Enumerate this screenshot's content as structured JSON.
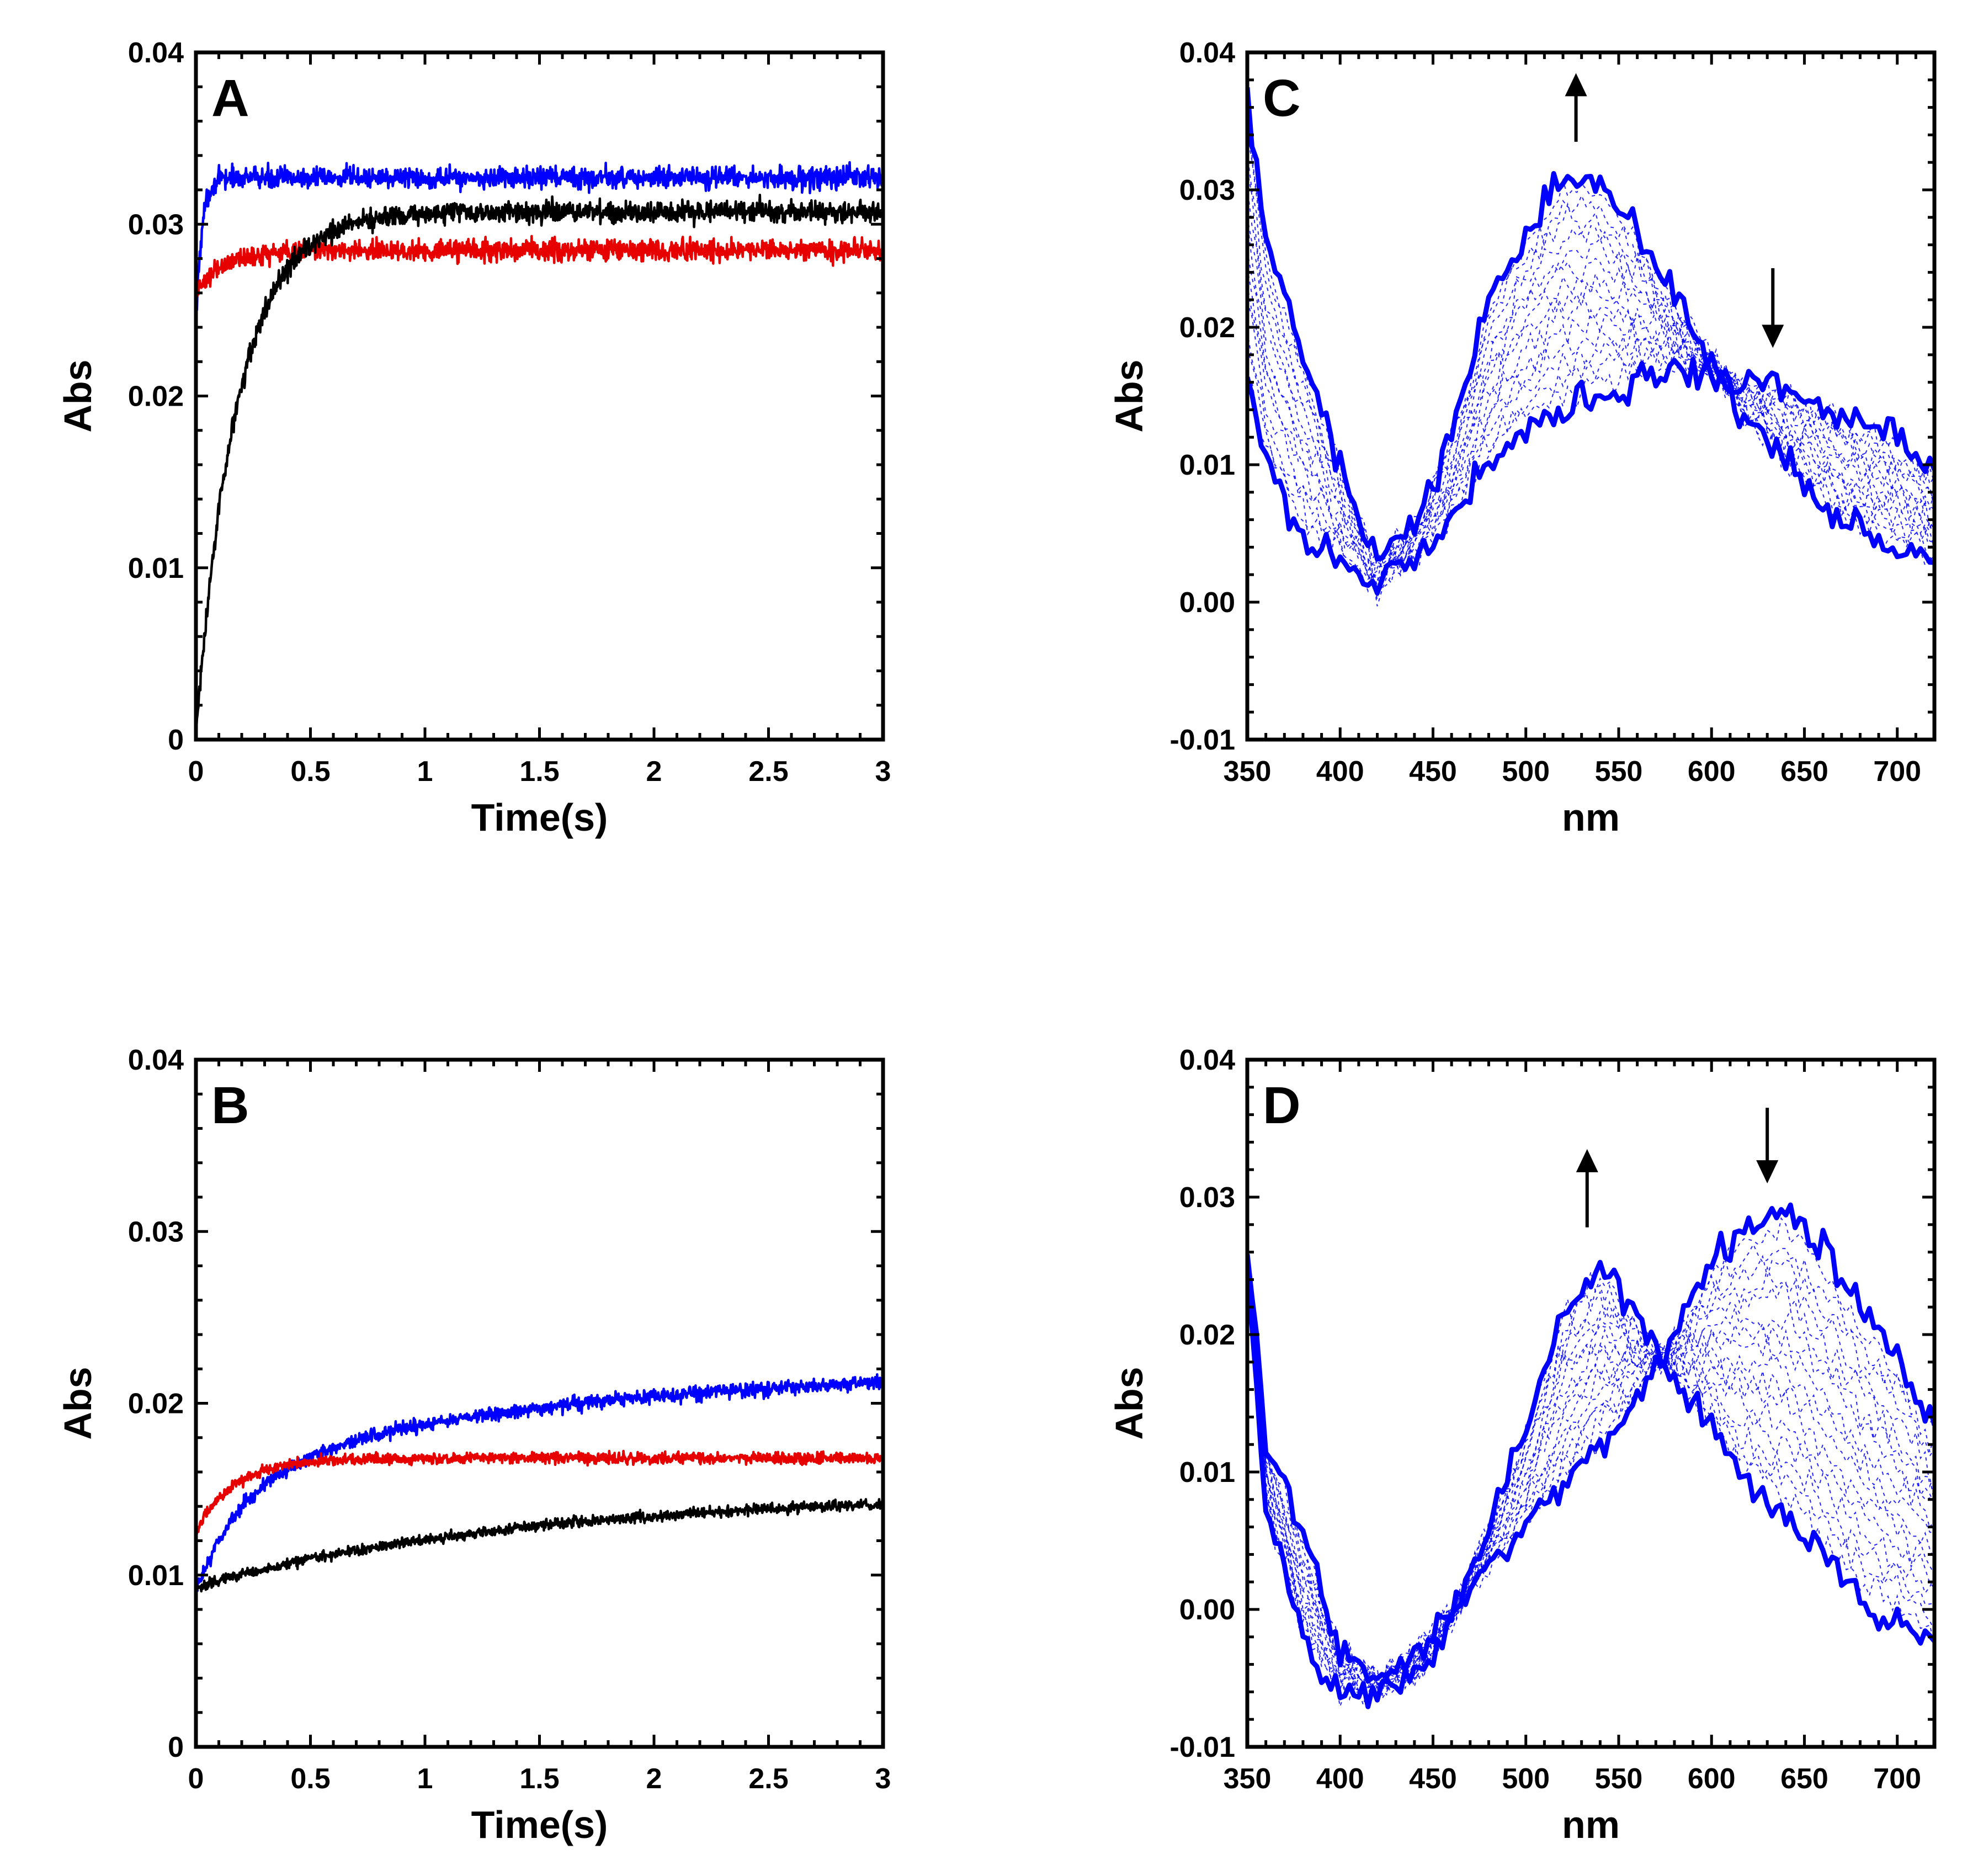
{
  "chart_data": [
    {
      "id": "A",
      "type": "line",
      "panel_label": "A",
      "xlabel": "Time(s)",
      "ylabel": "Abs",
      "xlim": [
        0,
        3
      ],
      "ylim": [
        0,
        0.04
      ],
      "xticks": [
        0,
        0.5,
        1,
        1.5,
        2,
        2.5,
        3
      ],
      "xtick_labels": [
        "0",
        "0.5",
        "1",
        "1.5",
        "2",
        "2.5",
        "3"
      ],
      "yticks": [
        0,
        0.01,
        0.02,
        0.03,
        0.04
      ],
      "ytick_labels": [
        "0",
        "0.01",
        "0.02",
        "0.03",
        "0.04"
      ],
      "series": [
        {
          "name": "blue trace",
          "color": "#0000ff",
          "model": "exp",
          "y0": 0.024,
          "amp": 0.0087,
          "k": 40,
          "noise": 0.0006,
          "x": [
            0,
            0.05,
            0.1,
            0.5,
            1,
            1.5,
            2,
            2.5,
            3
          ],
          "y": [
            0.024,
            0.031,
            0.0325,
            0.0327,
            0.0327,
            0.0327,
            0.0328,
            0.0328,
            0.0328
          ]
        },
        {
          "name": "red trace",
          "color": "#e60000",
          "model": "exp",
          "y0": 0.026,
          "amp": 0.0025,
          "k": 8,
          "noise": 0.0006,
          "x": [
            0,
            0.05,
            0.1,
            0.5,
            1,
            1.5,
            2,
            2.5,
            3
          ],
          "y": [
            0.026,
            0.0275,
            0.0277,
            0.0283,
            0.0285,
            0.0285,
            0.0285,
            0.0285,
            0.0285
          ]
        },
        {
          "name": "black trace",
          "color": "#000000",
          "model": "exp",
          "y0": 0.0005,
          "amp": 0.0302,
          "k": 5.5,
          "noise": 0.0006,
          "x": [
            0,
            0.1,
            0.2,
            0.3,
            0.5,
            0.7,
            1,
            1.5,
            2,
            2.5,
            3
          ],
          "y": [
            0.0005,
            0.013,
            0.02,
            0.025,
            0.029,
            0.0303,
            0.0305,
            0.0306,
            0.0307,
            0.0307,
            0.0307
          ]
        }
      ]
    },
    {
      "id": "B",
      "type": "line",
      "panel_label": "B",
      "xlabel": "Time(s)",
      "ylabel": "Abs",
      "xlim": [
        0,
        3
      ],
      "ylim": [
        0,
        0.04
      ],
      "xticks": [
        0,
        0.5,
        1,
        1.5,
        2,
        2.5,
        3
      ],
      "xtick_labels": [
        "0",
        "0.5",
        "1",
        "1.5",
        "2",
        "2.5",
        "3"
      ],
      "yticks": [
        0,
        0.01,
        0.02,
        0.03,
        0.04
      ],
      "ytick_labels": [
        "0",
        "0.01",
        "0.02",
        "0.03",
        "0.04"
      ],
      "series": [
        {
          "name": "blue trace",
          "color": "#0000ff",
          "model": "biexp",
          "y0": 0.009,
          "amp": 0.0065,
          "k": 5,
          "amp2": 0.0065,
          "k2": 0.7,
          "noise": 0.0004,
          "x": [
            0,
            0.25,
            0.5,
            1,
            1.5,
            2,
            2.5,
            3
          ],
          "y": [
            0.009,
            0.0145,
            0.0168,
            0.0192,
            0.0203,
            0.0211,
            0.0216,
            0.022
          ]
        },
        {
          "name": "red trace",
          "color": "#e60000",
          "model": "exp",
          "y0": 0.0125,
          "amp": 0.0043,
          "k": 6,
          "noise": 0.0003,
          "x": [
            0,
            0.25,
            0.5,
            1,
            1.5,
            2,
            2.5,
            3
          ],
          "y": [
            0.0125,
            0.0155,
            0.0165,
            0.0168,
            0.0168,
            0.0168,
            0.0168,
            0.0168
          ]
        },
        {
          "name": "black trace",
          "color": "#000000",
          "model": "exp",
          "y0": 0.0093,
          "amp": 0.0055,
          "k": 0.7,
          "noise": 0.0003,
          "x": [
            0,
            0.5,
            1,
            1.5,
            2,
            2.5,
            3
          ],
          "y": [
            0.0093,
            0.0113,
            0.0125,
            0.0131,
            0.0135,
            0.0138,
            0.014
          ]
        }
      ]
    },
    {
      "id": "C",
      "type": "line",
      "panel_label": "C",
      "xlabel": "nm",
      "ylabel": "Abs",
      "xlim": [
        350,
        720
      ],
      "ylim": [
        -0.01,
        0.04
      ],
      "xticks": [
        350,
        400,
        450,
        500,
        550,
        600,
        650,
        700
      ],
      "xtick_labels": [
        "350",
        "400",
        "450",
        "500",
        "550",
        "600",
        "650",
        "700"
      ],
      "yticks": [
        -0.01,
        0.0,
        0.01,
        0.02,
        0.03,
        0.04
      ],
      "ytick_labels": [
        "-0.01",
        "0.00",
        "0.01",
        "0.02",
        "0.03",
        "0.04"
      ],
      "spectra": [
        {
          "name": "initial spectrum",
          "color": "#0000ff",
          "x": [
            350,
            360,
            380,
            400,
            420,
            440,
            460,
            480,
            500,
            520,
            540,
            560,
            580,
            600,
            620,
            640,
            660,
            680,
            700,
            720
          ],
          "y": [
            0.016,
            0.01,
            0.005,
            0.003,
            0.001,
            0.003,
            0.006,
            0.01,
            0.013,
            0.014,
            0.015,
            0.016,
            0.017,
            0.0165,
            0.016,
            0.0155,
            0.0145,
            0.013,
            0.012,
            0.0095
          ]
        },
        {
          "name": "final spectrum",
          "color": "#0000ff",
          "x": [
            350,
            360,
            380,
            400,
            420,
            440,
            460,
            480,
            500,
            520,
            540,
            560,
            580,
            600,
            620,
            640,
            660,
            680,
            700,
            720
          ],
          "y": [
            0.037,
            0.026,
            0.018,
            0.01,
            0.003,
            0.006,
            0.012,
            0.022,
            0.027,
            0.031,
            0.031,
            0.027,
            0.022,
            0.018,
            0.013,
            0.01,
            0.007,
            0.005,
            0.004,
            0.0025
          ]
        }
      ],
      "intermediate_count": 14,
      "noise": 0.0012,
      "annotations": [
        {
          "type": "arrow",
          "direction": "up",
          "x": 527,
          "y_from": 0.0335,
          "y_to": 0.0385
        },
        {
          "type": "arrow",
          "direction": "down",
          "x": 633,
          "y_from": 0.0243,
          "y_to": 0.0185
        }
      ]
    },
    {
      "id": "D",
      "type": "line",
      "panel_label": "D",
      "xlabel": "nm",
      "ylabel": "Abs",
      "xlim": [
        350,
        720
      ],
      "ylim": [
        -0.01,
        0.04
      ],
      "xticks": [
        350,
        400,
        450,
        500,
        550,
        600,
        650,
        700
      ],
      "xtick_labels": [
        "350",
        "400",
        "450",
        "500",
        "550",
        "600",
        "650",
        "700"
      ],
      "yticks": [
        -0.01,
        0.0,
        0.01,
        0.02,
        0.03,
        0.04
      ],
      "ytick_labels": [
        "-0.01",
        "0.00",
        "0.01",
        "0.02",
        "0.03",
        "0.04"
      ],
      "spectra": [
        {
          "name": "initial spectrum",
          "color": "#0000ff",
          "x": [
            350,
            360,
            380,
            400,
            420,
            440,
            460,
            480,
            500,
            520,
            540,
            560,
            580,
            600,
            620,
            640,
            660,
            680,
            700,
            720
          ],
          "y": [
            0.026,
            0.012,
            0.005,
            -0.003,
            -0.005,
            -0.003,
            0.0,
            0.003,
            0.006,
            0.009,
            0.012,
            0.015,
            0.02,
            0.025,
            0.028,
            0.029,
            0.026,
            0.022,
            0.018,
            0.014
          ]
        },
        {
          "name": "final spectrum",
          "color": "#0000ff",
          "x": [
            350,
            360,
            380,
            400,
            420,
            440,
            460,
            480,
            500,
            520,
            540,
            560,
            580,
            600,
            620,
            640,
            660,
            680,
            700,
            720
          ],
          "y": [
            0.024,
            0.008,
            -0.002,
            -0.006,
            -0.006,
            -0.005,
            -0.001,
            0.006,
            0.013,
            0.022,
            0.025,
            0.021,
            0.017,
            0.013,
            0.009,
            0.007,
            0.004,
            0.001,
            -0.001,
            -0.003
          ]
        }
      ],
      "intermediate_count": 16,
      "noise": 0.0012,
      "annotations": [
        {
          "type": "arrow",
          "direction": "up",
          "x": 533,
          "y_from": 0.0278,
          "y_to": 0.0335
        },
        {
          "type": "arrow",
          "direction": "down",
          "x": 630,
          "y_from": 0.0365,
          "y_to": 0.031
        }
      ]
    }
  ]
}
